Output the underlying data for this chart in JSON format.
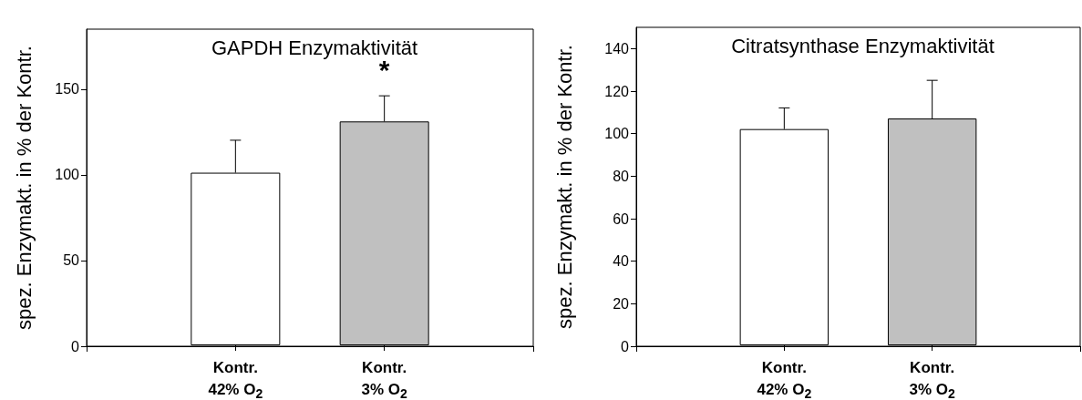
{
  "chart_data": [
    {
      "type": "bar",
      "title": "GAPDH Enzymaktivität",
      "ylabel": "spez. Enzymakt. in % der Kontr.",
      "categories": [
        "Kontr.\n42% O$_{2}$",
        "Kontr.\n3% O$_{2}$"
      ],
      "values": [
        101,
        131
      ],
      "colors": [
        "#ffffff",
        "#c0c0c0"
      ],
      "errors": [
        [
          101,
          120
        ],
        [
          131,
          146
        ]
      ],
      "ylim": [
        0,
        185
      ],
      "yticks": [
        0,
        50,
        100,
        150
      ],
      "annotations": [
        "*"
      ]
    },
    {
      "type": "bar",
      "title": "Citratsynthase Enzymaktivität",
      "ylabel": "spez. Enzymakt. in % der Kontr.",
      "categories": [
        "Kontr.\n42% O$_{2}$",
        "Kontr.\n3% O$_{2}$"
      ],
      "values": [
        102,
        107
      ],
      "colors": [
        "#ffffff",
        "#c0c0c0"
      ],
      "errors": [
        [
          102,
          112
        ],
        [
          107,
          125
        ]
      ],
      "ylim": [
        0,
        150
      ],
      "yticks": [
        0,
        20,
        40,
        60,
        80,
        100,
        120,
        140
      ]
    }
  ]
}
